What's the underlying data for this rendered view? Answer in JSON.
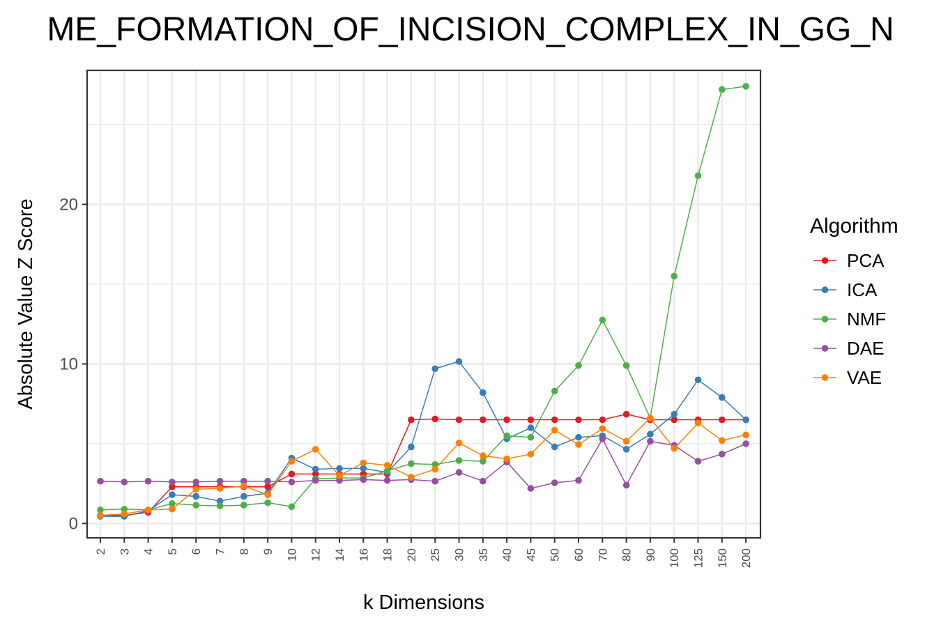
{
  "chart_data": {
    "type": "line",
    "title": "ME_FORMATION_OF_INCISION_COMPLEX_IN_GG_N",
    "xlabel": "k Dimensions",
    "ylabel": "Absolute Value Z Score",
    "categories": [
      "2",
      "3",
      "4",
      "5",
      "6",
      "7",
      "8",
      "9",
      "10",
      "12",
      "14",
      "16",
      "18",
      "20",
      "25",
      "30",
      "35",
      "40",
      "45",
      "50",
      "60",
      "70",
      "80",
      "90",
      "100",
      "125",
      "150",
      "200"
    ],
    "y_ticks": [
      0,
      10,
      20
    ],
    "ylim": [
      -0.9,
      28.4
    ],
    "grid": true,
    "legend": {
      "title": "Algorithm",
      "position": "right"
    },
    "series": [
      {
        "name": "PCA",
        "color": "#E41A1C",
        "values": [
          0.5,
          0.5,
          0.7,
          2.3,
          2.3,
          2.3,
          2.3,
          2.3,
          3.1,
          3.1,
          3.1,
          3.1,
          3.1,
          6.5,
          6.55,
          6.5,
          6.5,
          6.5,
          6.5,
          6.5,
          6.5,
          6.5,
          6.85,
          6.5,
          6.5,
          6.5,
          6.5,
          6.5
        ]
      },
      {
        "name": "ICA",
        "color": "#377EB8",
        "values": [
          0.45,
          0.45,
          0.8,
          1.8,
          1.7,
          1.4,
          1.7,
          1.9,
          4.1,
          3.4,
          3.45,
          3.45,
          3.2,
          4.8,
          9.7,
          10.15,
          8.2,
          5.3,
          6.0,
          4.8,
          5.4,
          5.5,
          4.65,
          5.6,
          6.85,
          9.0,
          7.9,
          6.5
        ]
      },
      {
        "name": "NMF",
        "color": "#4DAF4A",
        "values": [
          0.85,
          0.9,
          0.85,
          1.25,
          1.15,
          1.1,
          1.15,
          1.3,
          1.05,
          2.8,
          2.85,
          2.85,
          3.3,
          3.75,
          3.7,
          3.95,
          3.9,
          5.5,
          5.4,
          8.3,
          9.9,
          12.75,
          9.9,
          6.6,
          15.5,
          21.8,
          27.2,
          27.4
        ]
      },
      {
        "name": "DAE",
        "color": "#984EA3",
        "values": [
          2.65,
          2.6,
          2.65,
          2.6,
          2.6,
          2.65,
          2.65,
          2.65,
          2.6,
          2.7,
          2.7,
          2.75,
          2.7,
          2.75,
          2.65,
          3.2,
          2.65,
          3.85,
          2.2,
          2.55,
          2.7,
          5.3,
          2.4,
          5.15,
          4.9,
          3.9,
          4.35,
          5.0
        ]
      },
      {
        "name": "VAE",
        "color": "#FF7F00",
        "values": [
          0.5,
          0.6,
          0.85,
          0.9,
          2.15,
          2.2,
          2.35,
          1.8,
          3.9,
          4.65,
          3.0,
          3.8,
          3.65,
          2.9,
          3.4,
          5.05,
          4.25,
          4.05,
          4.35,
          5.85,
          4.95,
          5.95,
          5.15,
          6.6,
          4.7,
          6.3,
          5.2,
          5.55
        ]
      }
    ]
  }
}
